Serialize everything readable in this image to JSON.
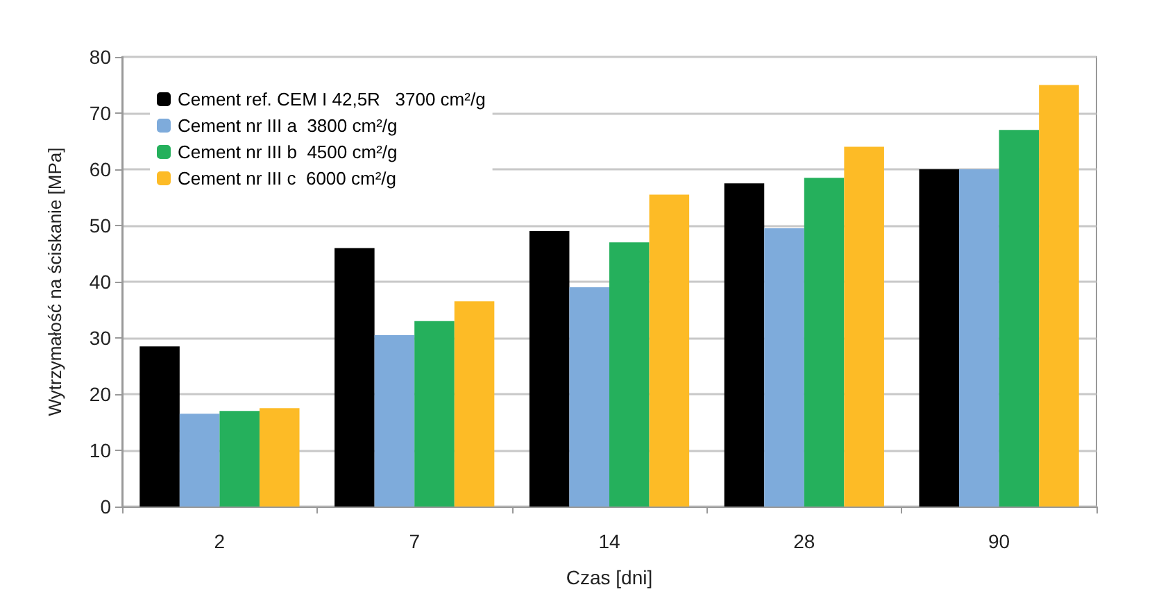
{
  "chart_data": {
    "type": "bar",
    "xlabel": "Czas [dni]",
    "ylabel": "Wytrzymałość na ściskanie [MPa]",
    "categories": [
      "2",
      "7",
      "14",
      "28",
      "90"
    ],
    "series": [
      {
        "name": "Cement ref. CEM I 42,5R   3700 cm²/g",
        "color": "#000000",
        "values": [
          28.5,
          46,
          49,
          57.5,
          60
        ]
      },
      {
        "name": "Cement nr III a  3800 cm²/g",
        "color": "#7eabdb",
        "values": [
          16.5,
          30.5,
          39,
          49.5,
          60
        ]
      },
      {
        "name": "Cement nr III b  4500 cm²/g",
        "color": "#25b05c",
        "values": [
          17,
          33,
          47,
          58.5,
          67
        ]
      },
      {
        "name": "Cement nr III c  6000 cm²/g",
        "color": "#fdbb26",
        "values": [
          17.5,
          36.5,
          55.5,
          64,
          75
        ]
      }
    ],
    "ylim": [
      0,
      80
    ],
    "yticks": [
      0,
      10,
      20,
      30,
      40,
      50,
      60,
      70,
      80
    ],
    "grid": "y",
    "legend": "top left"
  }
}
